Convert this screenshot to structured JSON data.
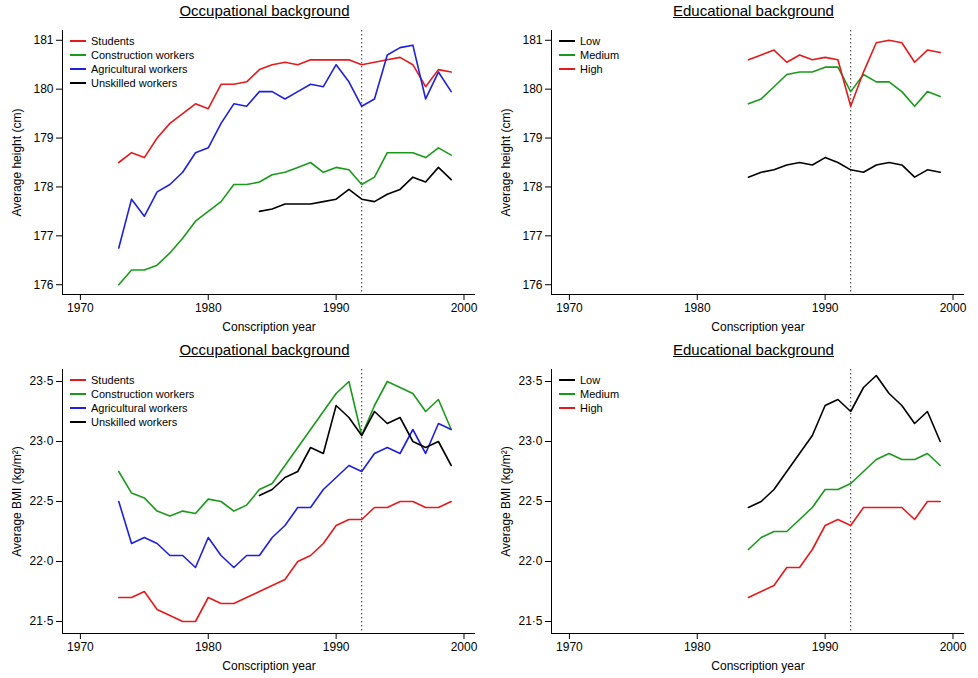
{
  "chart_data": [
    {
      "type": "line",
      "title": "Occupational background",
      "x_label": "Conscription year",
      "y_label": "Average height (cm)",
      "x": [
        1973,
        1974,
        1975,
        1976,
        1977,
        1978,
        1979,
        1980,
        1981,
        1982,
        1983,
        1984,
        1985,
        1986,
        1987,
        1988,
        1989,
        1990,
        1991,
        1992,
        1993,
        1994,
        1995,
        1996,
        1997,
        1998,
        1999
      ],
      "xlim": [
        1968.6,
        2000.9
      ],
      "xticks": [
        1970,
        1980,
        1990,
        2000
      ],
      "ylim": [
        175.8,
        181.2
      ],
      "yticks": [
        176,
        177,
        178,
        179,
        180,
        181
      ],
      "legend": "top-left",
      "vline": 1992,
      "series": [
        {
          "name": "Students",
          "color": "#e41a1c",
          "values": [
            178.5,
            178.7,
            178.6,
            179.0,
            179.3,
            179.5,
            179.7,
            179.6,
            180.1,
            180.1,
            180.15,
            180.4,
            180.5,
            180.55,
            180.5,
            180.6,
            180.6,
            180.6,
            180.6,
            180.5,
            180.55,
            180.6,
            180.65,
            180.5,
            180.05,
            180.4,
            180.35
          ]
        },
        {
          "name": "Construction workers",
          "color": "#1a9a1a",
          "values": [
            176.0,
            176.3,
            176.3,
            176.4,
            176.65,
            176.95,
            177.3,
            177.5,
            177.7,
            178.05,
            178.05,
            178.1,
            178.25,
            178.3,
            178.4,
            178.5,
            178.3,
            178.4,
            178.35,
            178.05,
            178.2,
            178.7,
            178.7,
            178.7,
            178.6,
            178.8,
            178.65
          ]
        },
        {
          "name": "Agricultural workers",
          "color": "#1f1fe0",
          "values": [
            176.75,
            177.75,
            177.4,
            177.9,
            178.05,
            178.3,
            178.7,
            178.8,
            179.3,
            179.7,
            179.65,
            179.95,
            179.95,
            179.8,
            179.95,
            180.1,
            180.05,
            180.5,
            180.15,
            179.65,
            179.8,
            180.7,
            180.85,
            180.9,
            179.8,
            180.35,
            179.95
          ]
        },
        {
          "name": "Unskilled workers",
          "color": "#000000",
          "values": [
            null,
            null,
            null,
            null,
            null,
            null,
            null,
            null,
            null,
            null,
            null,
            177.5,
            177.55,
            177.65,
            177.65,
            177.65,
            177.7,
            177.75,
            177.95,
            177.75,
            177.7,
            177.85,
            177.95,
            178.2,
            178.1,
            178.4,
            178.15
          ]
        }
      ]
    },
    {
      "type": "line",
      "title": "Educational background",
      "x_label": "Conscription year",
      "y_label": "Average height (cm)",
      "x": [
        1984,
        1985,
        1986,
        1987,
        1988,
        1989,
        1990,
        1991,
        1992,
        1993,
        1994,
        1995,
        1996,
        1997,
        1998,
        1999
      ],
      "xlim": [
        1968.6,
        2000.9
      ],
      "xticks": [
        1970,
        1980,
        1990,
        2000
      ],
      "ylim": [
        175.8,
        181.2
      ],
      "yticks": [
        176,
        177,
        178,
        179,
        180,
        181
      ],
      "legend": "top-left",
      "vline": 1992,
      "series": [
        {
          "name": "Low",
          "color": "#000000",
          "values": [
            178.2,
            178.3,
            178.35,
            178.45,
            178.5,
            178.45,
            178.6,
            178.5,
            178.35,
            178.3,
            178.45,
            178.5,
            178.45,
            178.2,
            178.35,
            178.3
          ]
        },
        {
          "name": "Medium",
          "color": "#1a9a1a",
          "values": [
            179.7,
            179.8,
            180.05,
            180.3,
            180.35,
            180.35,
            180.45,
            180.45,
            179.95,
            180.3,
            180.15,
            180.15,
            179.95,
            179.65,
            179.95,
            179.85
          ]
        },
        {
          "name": "High",
          "color": "#e41a1c",
          "values": [
            180.6,
            180.7,
            180.8,
            180.55,
            180.7,
            180.6,
            180.65,
            180.6,
            179.65,
            180.35,
            180.95,
            181.0,
            180.95,
            180.55,
            180.8,
            180.75
          ]
        }
      ]
    },
    {
      "type": "line",
      "title": "Occupational background",
      "x_label": "Conscription year",
      "y_label": "Average BMI (kg/m²)",
      "x": [
        1973,
        1974,
        1975,
        1976,
        1977,
        1978,
        1979,
        1980,
        1981,
        1982,
        1983,
        1984,
        1985,
        1986,
        1987,
        1988,
        1989,
        1990,
        1991,
        1992,
        1993,
        1994,
        1995,
        1996,
        1997,
        1998,
        1999
      ],
      "xlim": [
        1968.6,
        2000.9
      ],
      "xticks": [
        1970,
        1980,
        1990,
        2000
      ],
      "ylim": [
        21.4,
        23.6
      ],
      "yticks": [
        {
          "value": 21.5,
          "label": "21·5"
        },
        {
          "value": 22.0,
          "label": "22·0"
        },
        {
          "value": 22.5,
          "label": "22·5"
        },
        {
          "value": 23.0,
          "label": "23·0"
        },
        {
          "value": 23.5,
          "label": "23·5"
        }
      ],
      "legend": "top-left",
      "vline": 1992,
      "series": [
        {
          "name": "Students",
          "color": "#e41a1c",
          "values": [
            21.7,
            21.7,
            21.75,
            21.6,
            21.55,
            21.5,
            21.5,
            21.7,
            21.65,
            21.65,
            21.7,
            21.75,
            21.8,
            21.85,
            22.0,
            22.05,
            22.15,
            22.3,
            22.35,
            22.35,
            22.45,
            22.45,
            22.5,
            22.5,
            22.45,
            22.45,
            22.5
          ]
        },
        {
          "name": "Construction workers",
          "color": "#1a9a1a",
          "values": [
            22.75,
            22.57,
            22.53,
            22.42,
            22.38,
            22.42,
            22.4,
            22.52,
            22.5,
            22.42,
            22.47,
            22.6,
            22.65,
            22.8,
            22.95,
            23.1,
            23.25,
            23.4,
            23.5,
            23.05,
            23.3,
            23.5,
            23.45,
            23.4,
            23.25,
            23.35,
            23.1
          ]
        },
        {
          "name": "Agricultural workers",
          "color": "#1f1fe0",
          "values": [
            22.5,
            22.15,
            22.2,
            22.15,
            22.05,
            22.05,
            21.95,
            22.2,
            22.05,
            21.95,
            22.05,
            22.05,
            22.2,
            22.3,
            22.45,
            22.45,
            22.6,
            22.7,
            22.8,
            22.75,
            22.9,
            22.95,
            22.9,
            23.1,
            22.9,
            23.15,
            23.1
          ]
        },
        {
          "name": "Unskilled workers",
          "color": "#000000",
          "values": [
            null,
            null,
            null,
            null,
            null,
            null,
            null,
            null,
            null,
            null,
            null,
            22.55,
            22.6,
            22.7,
            22.75,
            22.95,
            22.9,
            23.3,
            23.2,
            23.05,
            23.25,
            23.15,
            23.2,
            23.0,
            22.95,
            23.0,
            22.8
          ]
        }
      ]
    },
    {
      "type": "line",
      "title": "Educational background",
      "x_label": "Conscription year",
      "y_label": "Average BMI (kg/m²)",
      "x": [
        1984,
        1985,
        1986,
        1987,
        1988,
        1989,
        1990,
        1991,
        1992,
        1993,
        1994,
        1995,
        1996,
        1997,
        1998,
        1999
      ],
      "xlim": [
        1968.6,
        2000.9
      ],
      "xticks": [
        1970,
        1980,
        1990,
        2000
      ],
      "ylim": [
        21.4,
        23.6
      ],
      "yticks": [
        {
          "value": 21.5,
          "label": "21·5"
        },
        {
          "value": 22.0,
          "label": "22·0"
        },
        {
          "value": 22.5,
          "label": "22·5"
        },
        {
          "value": 23.0,
          "label": "23·0"
        },
        {
          "value": 23.5,
          "label": "23·5"
        }
      ],
      "legend": "top-left",
      "vline": 1992,
      "series": [
        {
          "name": "Low",
          "color": "#000000",
          "values": [
            22.45,
            22.5,
            22.6,
            22.75,
            22.9,
            23.05,
            23.3,
            23.35,
            23.25,
            23.45,
            23.55,
            23.4,
            23.3,
            23.15,
            23.25,
            23.0
          ]
        },
        {
          "name": "Medium",
          "color": "#1a9a1a",
          "values": [
            22.1,
            22.2,
            22.25,
            22.25,
            22.35,
            22.45,
            22.6,
            22.6,
            22.65,
            22.75,
            22.85,
            22.9,
            22.85,
            22.85,
            22.9,
            22.8
          ]
        },
        {
          "name": "High",
          "color": "#e41a1c",
          "values": [
            21.7,
            21.75,
            21.8,
            21.95,
            21.95,
            22.1,
            22.3,
            22.35,
            22.3,
            22.45,
            22.45,
            22.45,
            22.45,
            22.35,
            22.5,
            22.5
          ]
        }
      ]
    }
  ]
}
